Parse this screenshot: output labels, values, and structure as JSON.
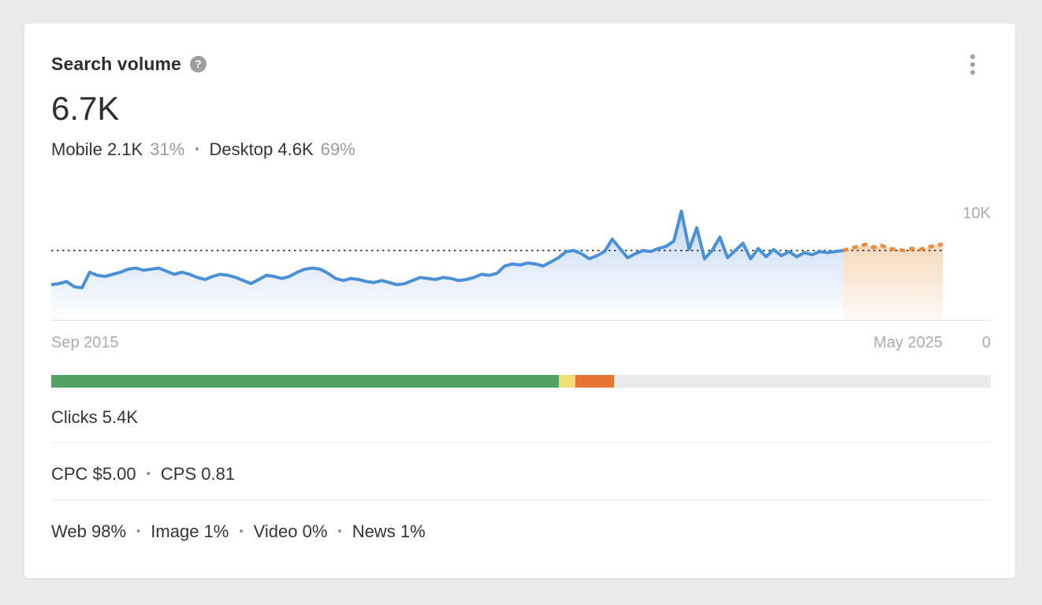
{
  "colors": {
    "page_bg": "#e9eaec",
    "card_bg": "#ffffff",
    "accent_blue": "#4a90d9",
    "accent_orange": "#ee8a3c",
    "threshold": "#4a4a4a",
    "text_dark": "#333333",
    "text_gray": "#9b9b9b",
    "axis_gray": "#ababab"
  },
  "header": {
    "title": "Search volume",
    "help_icon": "question-mark",
    "menu_icon": "kebab-vertical"
  },
  "metric": {
    "value": "6.7K"
  },
  "separator": "•",
  "breakdown": {
    "mobile_label": "Mobile",
    "mobile_value": "2.1K",
    "mobile_pct": "31%",
    "desktop_label": "Desktop",
    "desktop_value": "4.6K",
    "desktop_pct": "69%"
  },
  "chart_data": {
    "type": "area",
    "title": "Monthly search volume, Sep 2015 - May 2025 (historical + forecast)",
    "x_start_label": "Sep 2015",
    "x_end_label": "May 2025",
    "y_max_label": "10K",
    "y_min_label": "0",
    "ylim": [
      0,
      10000
    ],
    "values_unit": "thousands_per_month",
    "threshold_value_k": 6.7,
    "months_total": 117,
    "grid": false,
    "legend": false,
    "series": [
      {
        "name": "historical",
        "style": "solid",
        "color": "#4a90d9",
        "fill_top": "#c3d7f1",
        "start_index": 0,
        "values": [
          3.4,
          3.5,
          3.7,
          3.2,
          3.1,
          4.6,
          4.3,
          4.2,
          4.4,
          4.6,
          4.9,
          5.0,
          4.8,
          4.9,
          5.0,
          4.7,
          4.4,
          4.6,
          4.4,
          4.1,
          3.9,
          4.2,
          4.4,
          4.3,
          4.1,
          3.8,
          3.5,
          3.9,
          4.3,
          4.2,
          4.0,
          4.2,
          4.6,
          4.9,
          5.0,
          4.9,
          4.5,
          4.0,
          3.8,
          4.0,
          3.9,
          3.7,
          3.6,
          3.8,
          3.6,
          3.4,
          3.5,
          3.8,
          4.1,
          4.0,
          3.9,
          4.1,
          4.0,
          3.8,
          3.9,
          4.1,
          4.4,
          4.3,
          4.5,
          5.2,
          5.4,
          5.3,
          5.5,
          5.4,
          5.2,
          5.6,
          6.0,
          6.6,
          6.7,
          6.4,
          5.9,
          6.2,
          6.6,
          7.8,
          6.9,
          6.0,
          6.4,
          6.7,
          6.6,
          6.9,
          7.1,
          7.6,
          10.5,
          6.8,
          8.9,
          5.9,
          6.7,
          8.0,
          6.0,
          6.7,
          7.4,
          5.9,
          6.9,
          6.1,
          6.8,
          6.2,
          6.6,
          6.1,
          6.5,
          6.3,
          6.6,
          6.5,
          6.6,
          6.7
        ]
      },
      {
        "name": "forecast",
        "style": "dashed",
        "color": "#ee8a3c",
        "fill_top": "#f5d8ba",
        "start_index": 103,
        "values": [
          6.7,
          6.9,
          7.1,
          7.3,
          7.0,
          7.2,
          6.9,
          6.8,
          6.7,
          6.9,
          6.8,
          7.0,
          7.2,
          7.3
        ]
      }
    ]
  },
  "clicks_bar": {
    "segments": [
      {
        "name": "organic-clicks",
        "color": "#52a266",
        "pct": 54.0
      },
      {
        "name": "organic-and-paid-clicks",
        "color": "#f5dd76",
        "pct": 1.8
      },
      {
        "name": "paid-clicks",
        "color": "#e87433",
        "pct": 4.1
      },
      {
        "name": "no-clicks",
        "color": "#e9eaec",
        "pct": 40.1
      }
    ]
  },
  "stats": {
    "clicks_label": "Clicks",
    "clicks_value": "5.4K",
    "cpc_label": "CPC",
    "cpc_value": "$5.00",
    "cps_label": "CPS",
    "cps_value": "0.81",
    "serp": [
      {
        "label": "Web",
        "value": "98%"
      },
      {
        "label": "Image",
        "value": "1%"
      },
      {
        "label": "Video",
        "value": "0%"
      },
      {
        "label": "News",
        "value": "1%"
      }
    ]
  }
}
